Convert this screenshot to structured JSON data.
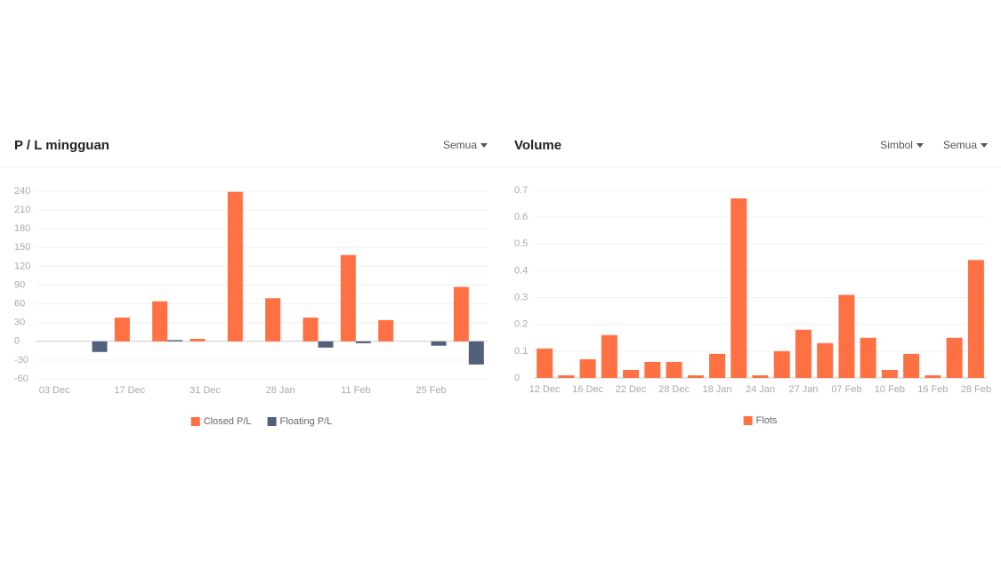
{
  "chart_data": [
    {
      "type": "bar",
      "title": "P / L mingguan",
      "categories": [
        "03 Dec",
        null,
        "17 Dec",
        null,
        "31 Dec",
        null,
        "28 Jan",
        null,
        "11 Feb",
        null,
        "25 Feb",
        null
      ],
      "series": [
        {
          "name": "Closed P/L",
          "color": "#ff7043",
          "values": [
            0,
            0,
            38,
            64,
            4,
            239,
            69,
            38,
            138,
            34,
            0,
            87
          ]
        },
        {
          "name": "Floating P/L",
          "color": "#52617a",
          "values": [
            0,
            -17,
            0,
            2,
            0,
            0,
            0,
            -10,
            -3,
            0,
            -7,
            -37
          ]
        }
      ],
      "ylim": [
        -60,
        240
      ],
      "yticks": [
        -60,
        -30,
        0,
        30,
        60,
        90,
        120,
        150,
        180,
        210,
        240
      ],
      "grid": true,
      "legend": "bottom"
    },
    {
      "type": "bar",
      "title": "Volume",
      "categories": [
        "12 Dec",
        null,
        "16 Dec",
        null,
        "22 Dec",
        null,
        "28 Dec",
        null,
        "18 Jan",
        null,
        "24 Jan",
        null,
        "27 Jan",
        null,
        "07 Feb",
        null,
        "10 Feb",
        null,
        "16 Feb",
        null,
        "28 Feb"
      ],
      "series": [
        {
          "name": "Flots",
          "color": "#ff7043",
          "values": [
            0.11,
            0.01,
            0.07,
            0.16,
            0.03,
            0.06,
            0.06,
            0.01,
            0.09,
            0.67,
            0.01,
            0.1,
            0.18,
            0.13,
            0.31,
            0.15,
            0.03,
            0.09,
            0.01,
            0.15,
            0.44
          ]
        }
      ],
      "ylim": [
        0,
        0.7
      ],
      "yticks": [
        0,
        0.1,
        0.2,
        0.3,
        0.4,
        0.5,
        0.6,
        0.7
      ],
      "grid": true,
      "legend": "bottom"
    }
  ],
  "filters": [
    [
      "Semua"
    ],
    [
      "Simbol",
      "Semua"
    ]
  ]
}
